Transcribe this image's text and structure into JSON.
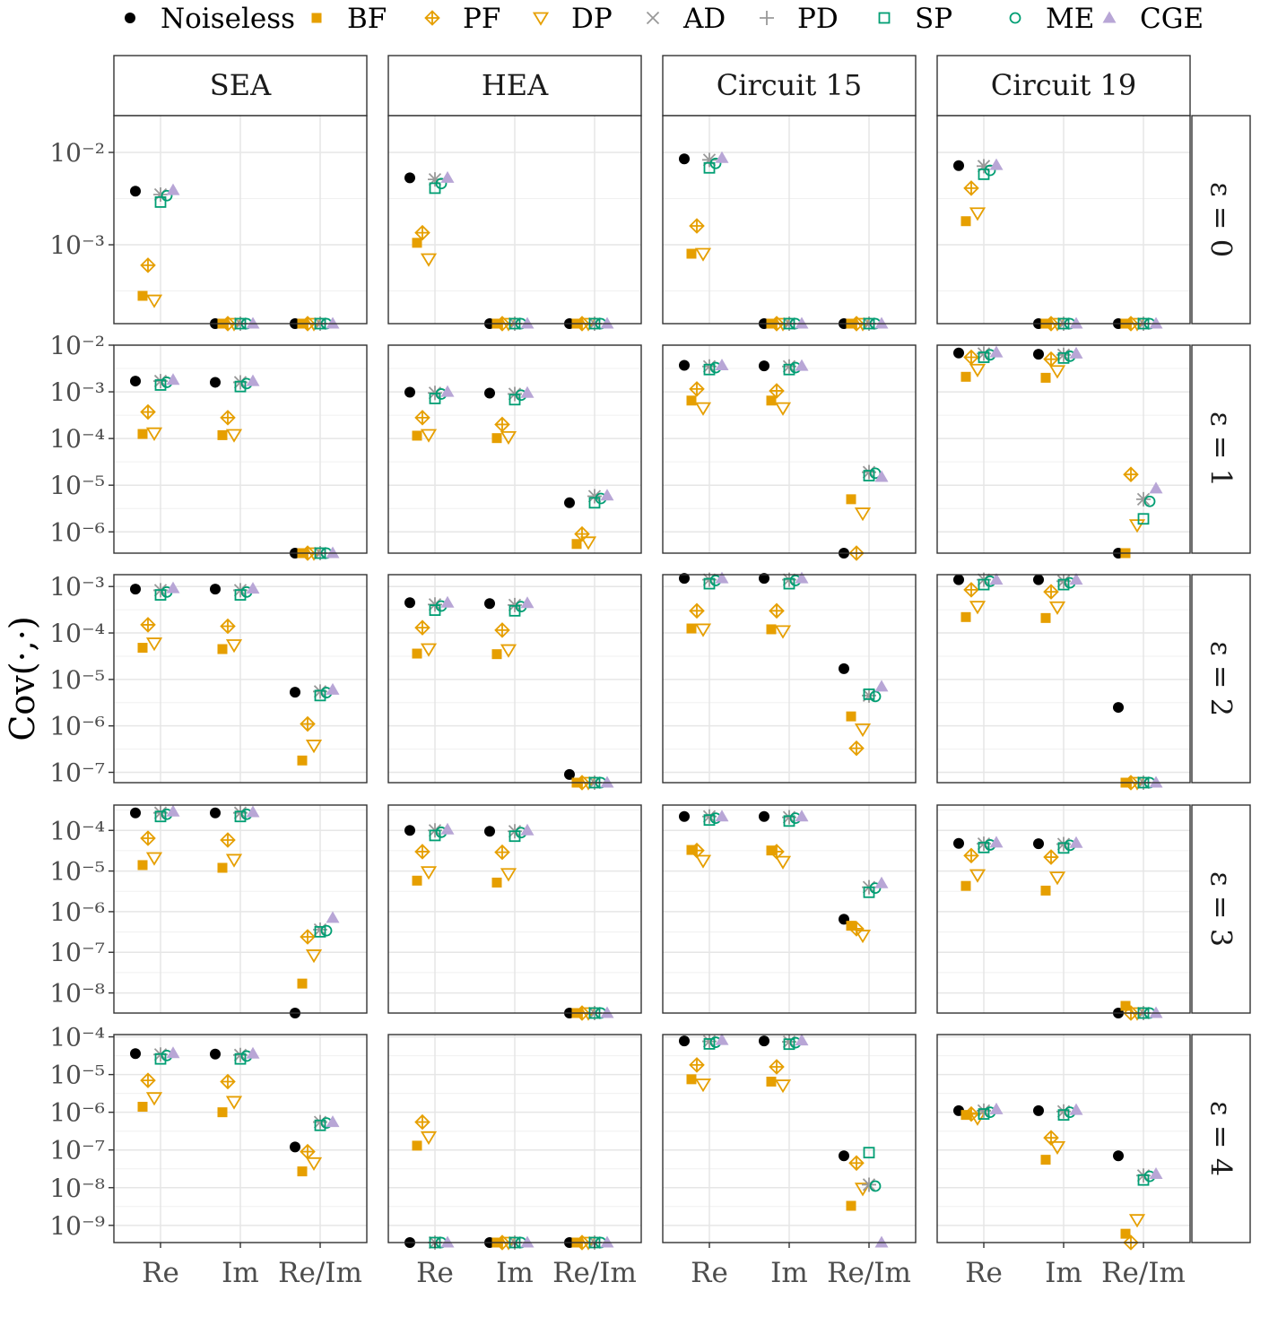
{
  "legend": {
    "entries": [
      {
        "key": "Noiseless",
        "label": "Noiseless",
        "color": "#000000",
        "shape": "filled-circle"
      },
      {
        "key": "BF",
        "label": "BF",
        "color": "#E69F00",
        "shape": "filled-square"
      },
      {
        "key": "PF",
        "label": "PF",
        "color": "#E69F00",
        "shape": "crossed-diamond"
      },
      {
        "key": "DP",
        "label": "DP",
        "color": "#E69F00",
        "shape": "down-triangle"
      },
      {
        "key": "AD",
        "label": "AD",
        "color": "#999999",
        "shape": "x-cross"
      },
      {
        "key": "PD",
        "label": "PD",
        "color": "#999999",
        "shape": "plus"
      },
      {
        "key": "SP",
        "label": "SP",
        "color": "#009E73",
        "shape": "open-square"
      },
      {
        "key": "ME",
        "label": "ME",
        "color": "#009E73",
        "shape": "open-circle"
      },
      {
        "key": "CGE",
        "label": "CGE",
        "color": "#B8A6D6",
        "shape": "filled-triangle"
      }
    ]
  },
  "chart_data": {
    "type": "scatter",
    "y_label": "Cov(·,·)",
    "y_scale": "log10",
    "x_categories": [
      "Re",
      "Im",
      "Re/Im"
    ],
    "columns": [
      "SEA",
      "HEA",
      "Circuit 15",
      "Circuit 19"
    ],
    "rows": [
      "ε = 0",
      "ε = 1",
      "ε = 2",
      "ε = 3",
      "ε = 4"
    ],
    "series_order": [
      "Noiseless",
      "BF",
      "PF",
      "DP",
      "AD",
      "PD",
      "SP",
      "ME",
      "CGE"
    ],
    "grid": true,
    "legend_position": "top",
    "panels": [
      {
        "row": 0,
        "col": 0,
        "ylim": [
          0.00014,
          0.025
        ],
        "y_ticks": [
          -3,
          -2
        ],
        "values": [
          [
            0.0038,
            0.00028,
            0.0006,
            0.00025,
            0.0035,
            0.0035,
            0.0029,
            0.0034,
            0.0039
          ],
          [
            0.00014,
            0.00014,
            0.00014,
            0.00014,
            0.00014,
            0.00014,
            0.00014,
            0.00014,
            0.00014
          ],
          [
            0.00014,
            0.00014,
            0.00014,
            0.00014,
            0.00014,
            0.00014,
            0.00014,
            0.00014,
            0.00014
          ]
        ]
      },
      {
        "row": 0,
        "col": 1,
        "ylim": [
          0.00014,
          0.025
        ],
        "y_ticks": [
          -3,
          -2
        ],
        "values": [
          [
            0.0053,
            0.00105,
            0.00135,
            0.0007,
            0.0051,
            0.0051,
            0.0041,
            0.0046,
            0.0053
          ],
          [
            0.00014,
            0.00014,
            0.00014,
            0.00014,
            0.00014,
            0.00014,
            0.00014,
            0.00014,
            0.00014
          ],
          [
            0.00014,
            0.00014,
            0.00014,
            0.00014,
            0.00014,
            0.00014,
            0.00014,
            0.00014,
            0.00014
          ]
        ]
      },
      {
        "row": 0,
        "col": 2,
        "ylim": [
          0.00014,
          0.025
        ],
        "y_ticks": [
          -3,
          -2
        ],
        "values": [
          [
            0.0085,
            0.0008,
            0.0016,
            0.0008,
            0.0083,
            0.0083,
            0.0068,
            0.0076,
            0.0087
          ],
          [
            0.00014,
            0.00014,
            0.00014,
            0.00014,
            0.00014,
            0.00014,
            0.00014,
            0.00014,
            0.00014
          ],
          [
            0.00014,
            0.00014,
            0.00014,
            0.00014,
            0.00014,
            0.00014,
            0.00014,
            0.00014,
            0.00014
          ]
        ]
      },
      {
        "row": 0,
        "col": 3,
        "ylim": [
          0.00014,
          0.025
        ],
        "y_ticks": [
          -3,
          -2
        ],
        "values": [
          [
            0.0072,
            0.0018,
            0.0041,
            0.0022,
            0.0071,
            0.0071,
            0.0058,
            0.0064,
            0.0073
          ],
          [
            0.00014,
            0.00014,
            0.00014,
            0.00014,
            0.00014,
            0.00014,
            0.00014,
            0.00014,
            0.00014
          ],
          [
            0.00014,
            0.00014,
            0.00014,
            0.00014,
            0.00014,
            0.00014,
            0.00014,
            0.00014,
            0.00014
          ]
        ]
      },
      {
        "row": 1,
        "col": 0,
        "ylim": [
          3.5e-07,
          0.01
        ],
        "y_ticks": [
          -6,
          -5,
          -4,
          -3,
          -2
        ],
        "values": [
          [
            0.0017,
            0.000125,
            0.00037,
            0.00013,
            0.0017,
            0.0017,
            0.0014,
            0.0016,
            0.0018
          ],
          [
            0.0016,
            0.000118,
            0.00028,
            0.00012,
            0.0016,
            0.0016,
            0.0013,
            0.0015,
            0.0017
          ],
          [
            3.5e-07,
            3.5e-07,
            3.5e-07,
            3.5e-07,
            3.5e-07,
            3.5e-07,
            3.5e-07,
            3.5e-07,
            3.5e-07
          ]
        ]
      },
      {
        "row": 1,
        "col": 1,
        "ylim": [
          3.5e-07,
          0.01
        ],
        "y_ticks": [
          -6,
          -5,
          -4,
          -3,
          -2
        ],
        "values": [
          [
            0.00098,
            0.000115,
            0.00028,
            0.00012,
            0.00095,
            0.00095,
            0.00072,
            0.0009,
            0.001
          ],
          [
            0.00094,
            0.000102,
            0.0002,
            0.000108,
            0.0009,
            0.0009,
            0.00068,
            0.00085,
            0.00095
          ],
          [
            4.2e-06,
            5.5e-07,
            9e-07,
            6e-07,
            5.8e-06,
            5.8e-06,
            4.2e-06,
            5.2e-06,
            6e-06
          ]
        ]
      },
      {
        "row": 1,
        "col": 2,
        "ylim": [
          3.5e-07,
          0.01
        ],
        "y_ticks": [
          -6,
          -5,
          -4,
          -3,
          -2
        ],
        "values": [
          [
            0.0037,
            0.00065,
            0.00115,
            0.00045,
            0.0035,
            0.0035,
            0.003,
            0.0033,
            0.0037
          ],
          [
            0.0036,
            0.00065,
            0.00105,
            0.00045,
            0.0035,
            0.0035,
            0.003,
            0.0033,
            0.0036
          ],
          [
            3.5e-07,
            5e-06,
            3.5e-07,
            2.5e-06,
            1.9e-05,
            1.9e-05,
            1.6e-05,
            1.8e-05,
            1.5e-05
          ]
        ]
      },
      {
        "row": 1,
        "col": 3,
        "ylim": [
          3.5e-07,
          0.01
        ],
        "y_ticks": [
          -6,
          -5,
          -4,
          -3,
          -2
        ],
        "values": [
          [
            0.0068,
            0.0021,
            0.0055,
            0.003,
            0.0066,
            0.0066,
            0.0055,
            0.0062,
            0.007
          ],
          [
            0.0064,
            0.002,
            0.005,
            0.0028,
            0.0062,
            0.0062,
            0.0053,
            0.0058,
            0.0066
          ],
          [
            3.5e-07,
            3.5e-07,
            1.7e-05,
            1.4e-06,
            5e-06,
            5e-06,
            1.9e-06,
            4.5e-06,
            8.5e-06
          ]
        ]
      },
      {
        "row": 2,
        "col": 0,
        "ylim": [
          6e-08,
          0.0018
        ],
        "y_ticks": [
          -7,
          -6,
          -5,
          -4,
          -3
        ],
        "values": [
          [
            0.00088,
            4.8e-05,
            0.00015,
            6e-05,
            0.00083,
            0.00083,
            0.00066,
            0.00076,
            0.00092
          ],
          [
            0.00088,
            4.5e-05,
            0.00014,
            5.5e-05,
            0.00083,
            0.00083,
            0.00066,
            0.00076,
            0.0009
          ],
          [
            5.3e-06,
            1.8e-07,
            1.1e-06,
            3.8e-07,
            5.5e-06,
            5.5e-06,
            4.5e-06,
            5.2e-06,
            6e-06
          ]
        ]
      },
      {
        "row": 2,
        "col": 1,
        "ylim": [
          6e-08,
          0.0018
        ],
        "y_ticks": [
          -7,
          -6,
          -5,
          -4,
          -3
        ],
        "values": [
          [
            0.00045,
            3.6e-05,
            0.00013,
            4.5e-05,
            0.00041,
            0.00041,
            0.00031,
            0.00038,
            0.00045
          ],
          [
            0.00043,
            3.5e-05,
            0.000115,
            4.3e-05,
            0.0004,
            0.0004,
            0.0003,
            0.00037,
            0.00044
          ],
          [
            9e-08,
            6e-08,
            6e-08,
            6e-08,
            6e-08,
            6e-08,
            6e-08,
            6e-08,
            6e-08
          ]
        ]
      },
      {
        "row": 2,
        "col": 2,
        "ylim": [
          6e-08,
          0.0018
        ],
        "y_ticks": [
          -7,
          -6,
          -5,
          -4,
          -3
        ],
        "values": [
          [
            0.0015,
            0.000125,
            0.0003,
            0.00012,
            0.0014,
            0.0014,
            0.00115,
            0.00135,
            0.0015
          ],
          [
            0.0015,
            0.00012,
            0.0003,
            0.00011,
            0.0014,
            0.0014,
            0.00115,
            0.00135,
            0.0015
          ],
          [
            1.7e-05,
            1.6e-06,
            3.3e-07,
            8.5e-07,
            4.5e-06,
            4.5e-06,
            4.8e-06,
            4.3e-06,
            7e-06
          ]
        ]
      },
      {
        "row": 2,
        "col": 3,
        "ylim": [
          6e-08,
          0.0018
        ],
        "y_ticks": [
          -7,
          -6,
          -5,
          -4,
          -3
        ],
        "values": [
          [
            0.0014,
            0.00022,
            0.00085,
            0.00037,
            0.0014,
            0.0014,
            0.0011,
            0.0013,
            0.0014
          ],
          [
            0.0014,
            0.00021,
            0.00077,
            0.00036,
            0.0013,
            0.0013,
            0.0011,
            0.0012,
            0.0014
          ],
          [
            2.5e-06,
            6e-08,
            6e-08,
            6e-08,
            6e-08,
            6e-08,
            6e-08,
            6e-08,
            6e-08
          ]
        ]
      },
      {
        "row": 3,
        "col": 0,
        "ylim": [
          3.2e-09,
          0.00042
        ],
        "y_ticks": [
          -8,
          -7,
          -6,
          -5,
          -4
        ],
        "values": [
          [
            0.00027,
            1.4e-05,
            6.4e-05,
            2.1e-05,
            0.00027,
            0.00027,
            0.00022,
            0.00025,
            0.00029
          ],
          [
            0.00027,
            1.2e-05,
            5.8e-05,
            1.9e-05,
            0.00027,
            0.00027,
            0.00022,
            0.00025,
            0.00028
          ],
          [
            3.2e-09,
            1.7e-08,
            2.4e-07,
            8.5e-08,
            3.6e-07,
            3.6e-07,
            3.2e-07,
            3.4e-07,
            7e-07
          ]
        ]
      },
      {
        "row": 3,
        "col": 1,
        "ylim": [
          3.2e-09,
          0.00042
        ],
        "y_ticks": [
          -8,
          -7,
          -6,
          -5,
          -4
        ],
        "values": [
          [
            0.0001,
            5.8e-06,
            3e-05,
            9.5e-06,
            0.0001,
            0.0001,
            7.5e-05,
            9e-05,
            0.000105
          ],
          [
            9.5e-05,
            5.2e-06,
            2.9e-05,
            8.5e-06,
            9.5e-05,
            9.5e-05,
            7.2e-05,
            8.8e-05,
            0.0001
          ],
          [
            3.2e-09,
            3.2e-09,
            3.2e-09,
            3.2e-09,
            3.2e-09,
            3.2e-09,
            3.2e-09,
            3.2e-09,
            3.2e-09
          ]
        ]
      },
      {
        "row": 3,
        "col": 2,
        "ylim": [
          3.2e-09,
          0.00042
        ],
        "y_ticks": [
          -8,
          -7,
          -6,
          -5,
          -4
        ],
        "values": [
          [
            0.00022,
            3.3e-05,
            3.2e-05,
            1.8e-05,
            0.00022,
            0.00022,
            0.00018,
            0.0002,
            0.00022
          ],
          [
            0.00022,
            3.2e-05,
            3e-05,
            1.7e-05,
            0.00021,
            0.00021,
            0.00017,
            0.0002,
            0.00022
          ],
          [
            6.5e-07,
            4.5e-07,
            3.8e-07,
            2.6e-07,
            4e-06,
            4e-06,
            3e-06,
            3.8e-06,
            5e-06
          ]
        ]
      },
      {
        "row": 3,
        "col": 3,
        "ylim": [
          3.2e-09,
          0.00042
        ],
        "y_ticks": [
          -8,
          -7,
          -6,
          -5,
          -4
        ],
        "values": [
          [
            4.8e-05,
            4.3e-06,
            2.4e-05,
            8e-06,
            4.7e-05,
            4.7e-05,
            3.8e-05,
            4.4e-05,
            5e-05
          ],
          [
            4.7e-05,
            3.3e-06,
            2.2e-05,
            7e-06,
            4.6e-05,
            4.6e-05,
            3.7e-05,
            4.3e-05,
            4.9e-05
          ],
          [
            3.2e-09,
            4.8e-09,
            3.2e-09,
            3.2e-09,
            3.2e-09,
            3.2e-09,
            3.2e-09,
            3.2e-09,
            3.2e-09
          ]
        ]
      },
      {
        "row": 4,
        "col": 0,
        "ylim": [
          3.5e-10,
          0.000115
        ],
        "y_ticks": [
          -9,
          -8,
          -7,
          -6,
          -5,
          -4
        ],
        "values": [
          [
            3.6e-05,
            1.4e-06,
            7e-06,
            2.4e-06,
            3.4e-05,
            3.4e-05,
            2.6e-05,
            3.2e-05,
            3.7e-05
          ],
          [
            3.5e-05,
            1e-06,
            6.5e-06,
            1.9e-06,
            3.3e-05,
            3.3e-05,
            2.6e-05,
            3.1e-05,
            3.6e-05
          ],
          [
            1.2e-07,
            2.7e-08,
            9e-08,
            4.5e-08,
            5.5e-07,
            5.5e-07,
            4.5e-07,
            5.2e-07,
            5.5e-07
          ]
        ]
      },
      {
        "row": 4,
        "col": 1,
        "ylim": [
          3.5e-10,
          0.000115
        ],
        "y_ticks": [
          -9,
          -8,
          -7,
          -6,
          -5,
          -4
        ],
        "values": [
          [
            3.5e-10,
            1.3e-07,
            5.5e-07,
            2.2e-07,
            3.5e-10,
            3.5e-10,
            3.5e-10,
            3.5e-10,
            3.5e-10
          ],
          [
            3.5e-10,
            3.5e-10,
            3.5e-10,
            3.5e-10,
            3.5e-10,
            3.5e-10,
            3.5e-10,
            3.5e-10,
            3.5e-10
          ],
          [
            3.5e-10,
            3.5e-10,
            3.5e-10,
            3.5e-10,
            3.5e-10,
            3.5e-10,
            3.5e-10,
            3.5e-10,
            3.5e-10
          ]
        ]
      },
      {
        "row": 4,
        "col": 2,
        "ylim": [
          3.5e-10,
          0.000115
        ],
        "y_ticks": [
          -9,
          -8,
          -7,
          -6,
          -5,
          -4
        ],
        "values": [
          [
            7.8e-05,
            7.5e-06,
            1.8e-05,
            5.5e-06,
            7.6e-05,
            7.6e-05,
            6.5e-05,
            7.2e-05,
            8.2e-05
          ],
          [
            7.8e-05,
            6.5e-06,
            1.6e-05,
            5.2e-06,
            7.4e-05,
            7.4e-05,
            6.4e-05,
            7e-05,
            8e-05
          ],
          [
            7e-08,
            3.3e-09,
            4.5e-08,
            9.5e-09,
            1.2e-08,
            1.2e-08,
            8.5e-08,
            1.1e-08,
            3.5e-10
          ]
        ]
      },
      {
        "row": 4,
        "col": 3,
        "ylim": [
          3.5e-10,
          0.000115
        ],
        "y_ticks": [
          -9,
          -8,
          -7,
          -6,
          -5,
          -4
        ],
        "values": [
          [
            1.1e-06,
            8.5e-07,
            9e-07,
            7e-07,
            1.1e-06,
            1.1e-06,
            9e-07,
            1e-06,
            1.2e-06
          ],
          [
            1.1e-06,
            5.5e-08,
            2.1e-07,
            1.2e-07,
            1.05e-06,
            1.05e-06,
            8.5e-07,
            1e-06,
            1.15e-06
          ],
          [
            7e-08,
            6e-10,
            3.5e-10,
            1.4e-09,
            2.1e-08,
            2.1e-08,
            1.6e-08,
            2e-08,
            2.3e-08
          ]
        ]
      }
    ]
  }
}
